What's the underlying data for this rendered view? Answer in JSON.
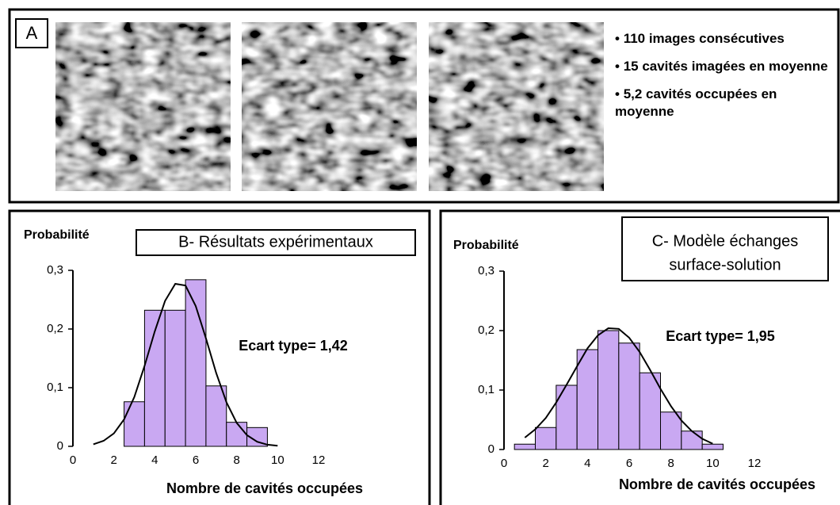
{
  "panel_a": {
    "label": "A",
    "bullets": [
      "110 images consécutives",
      "15 cavités imagées en moyenne",
      "5,2 cavités occupées en moyenne"
    ]
  },
  "chart_data": [
    {
      "type": "histogram",
      "title": "B- Résultats expérimentaux",
      "ylabel": "Probabilité",
      "xlabel": "Nombre de cavités occupées",
      "annotation": "Ecart type= 1,42",
      "bins": [
        2.5,
        3.5,
        4.5,
        5.5,
        6.5,
        7.5,
        8.5,
        9.5
      ],
      "values": [
        0.076,
        0.232,
        0.232,
        0.284,
        0.103,
        0.041,
        0.032
      ],
      "color": "#c9a8f2",
      "fit": {
        "x": [
          1,
          1.5,
          2,
          2.5,
          3,
          3.5,
          4,
          4.5,
          5,
          5.5,
          6,
          6.5,
          7,
          7.5,
          8,
          8.5,
          9,
          9.5,
          10
        ],
        "y": [
          0.0035,
          0.0094,
          0.022,
          0.046,
          0.084,
          0.137,
          0.196,
          0.248,
          0.277,
          0.274,
          0.239,
          0.184,
          0.125,
          0.075,
          0.04,
          0.019,
          0.0078,
          0.0029,
          0.0009
        ]
      },
      "xlim": [
        0,
        12
      ],
      "ylim": [
        0,
        0.3
      ],
      "xticks": [
        0,
        2,
        4,
        6,
        8,
        10,
        12
      ],
      "yticks": [
        0,
        {
          "value": 0.1,
          "label": "0,1"
        },
        {
          "value": 0.2,
          "label": "0,2"
        },
        {
          "value": 0.3,
          "label": "0,3"
        }
      ]
    },
    {
      "type": "histogram",
      "title": [
        "C- Modèle échanges",
        "surface-solution"
      ],
      "ylabel": "Probabilité",
      "xlabel": "Nombre de cavités occupées",
      "annotation": "Ecart type= 1,95",
      "bins": [
        0.5,
        1.5,
        2.5,
        3.5,
        4.5,
        5.5,
        6.5,
        7.5,
        8.5,
        9.5,
        10.5
      ],
      "values": [
        0.009,
        0.037,
        0.108,
        0.168,
        0.2,
        0.179,
        0.129,
        0.063,
        0.031,
        0.009
      ],
      "color": "#c9a8f2",
      "fit": {
        "x": [
          1,
          1.5,
          2,
          2.5,
          3,
          3.5,
          4,
          4.5,
          5,
          5.5,
          6,
          6.5,
          7,
          7.5,
          8,
          8.5,
          9,
          9.5,
          10
        ],
        "y": [
          0.02,
          0.034,
          0.053,
          0.079,
          0.109,
          0.14,
          0.17,
          0.192,
          0.204,
          0.203,
          0.188,
          0.164,
          0.134,
          0.102,
          0.073,
          0.049,
          0.031,
          0.018,
          0.0099
        ]
      },
      "xlim": [
        0,
        12
      ],
      "ylim": [
        0,
        0.3
      ],
      "xticks": [
        0,
        2,
        4,
        6,
        8,
        10,
        12
      ],
      "yticks": [
        0,
        {
          "value": 0.1,
          "label": "0,1"
        },
        {
          "value": 0.2,
          "label": "0,2"
        },
        {
          "value": 0.3,
          "label": "0,3"
        }
      ]
    }
  ]
}
